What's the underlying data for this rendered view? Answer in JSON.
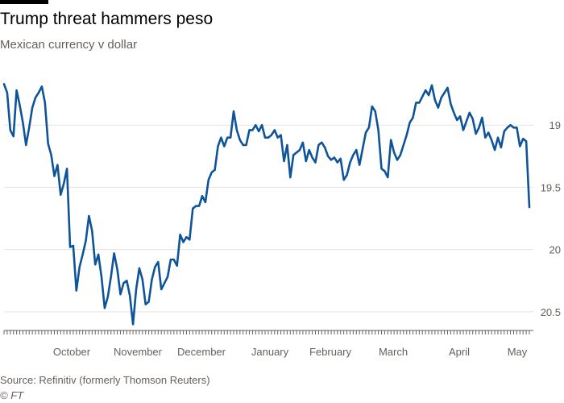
{
  "chart_data": {
    "type": "line",
    "title": "Trump threat hammers peso",
    "subtitle": "Mexican currency v dollar",
    "y_ticks": [
      "19",
      "19.5",
      "20",
      "20.5"
    ],
    "y_tick_values": [
      19,
      19.5,
      20,
      20.5
    ],
    "ylim": [
      18.5,
      20.65
    ],
    "y_inverted": true,
    "x_ticks": [
      "October",
      "November",
      "December",
      "January",
      "February",
      "March",
      "April",
      "May"
    ],
    "grid": true,
    "series": [
      {
        "values": [
          18.67,
          18.74,
          19.04,
          19.09,
          18.72,
          18.84,
          18.98,
          19.16,
          19.02,
          18.86,
          18.78,
          18.74,
          18.69,
          18.82,
          19.15,
          19.24,
          19.41,
          19.32,
          19.56,
          19.47,
          19.35,
          19.98,
          19.97,
          20.33,
          20.14,
          20.04,
          19.93,
          19.73,
          19.85,
          20.12,
          20.04,
          20.22,
          20.47,
          20.38,
          20.22,
          20.03,
          20.16,
          20.36,
          20.27,
          20.25,
          20.37,
          20.6,
          20.32,
          20.15,
          20.24,
          20.44,
          20.42,
          20.24,
          20.14,
          20.1,
          20.32,
          20.27,
          20.22,
          20.08,
          20.08,
          20.13,
          19.88,
          19.94,
          19.9,
          19.92,
          19.67,
          19.65,
          19.65,
          19.57,
          19.62,
          19.44,
          19.38,
          19.36,
          19.17,
          19.1,
          19.17,
          19.1,
          19.1,
          18.89,
          19.04,
          19.12,
          19.16,
          19.16,
          19.04,
          19.04,
          19.0,
          19.05,
          19.0,
          19.1,
          19.1,
          19.08,
          19.04,
          19.1,
          19.08,
          19.29,
          19.16,
          19.42,
          19.24,
          19.22,
          19.2,
          19.14,
          19.29,
          19.2,
          19.26,
          19.3,
          19.16,
          19.14,
          19.18,
          19.25,
          19.28,
          19.26,
          19.3,
          19.27,
          19.44,
          19.4,
          19.3,
          19.24,
          19.2,
          19.32,
          19.19,
          19.06,
          19.02,
          18.85,
          18.89,
          19.04,
          19.35,
          19.37,
          19.42,
          19.12,
          19.22,
          19.28,
          19.24,
          19.16,
          19.08,
          18.98,
          18.94,
          18.82,
          18.82,
          18.77,
          18.72,
          18.76,
          18.68,
          18.8,
          18.86,
          18.78,
          18.74,
          18.7,
          18.83,
          18.9,
          18.96,
          18.93,
          19.04,
          18.97,
          18.9,
          18.95,
          19.07,
          19.02,
          18.94,
          19.1,
          19.06,
          19.12,
          19.2,
          19.1,
          19.18,
          19.05,
          19.02,
          19.0,
          19.02,
          19.02,
          19.17,
          19.11,
          19.13,
          19.66
        ],
        "color": "#0f5499"
      }
    ]
  },
  "footer": {
    "source": "Source: Refinitiv (formerly Thomson Reuters)",
    "credit": "© FT"
  }
}
